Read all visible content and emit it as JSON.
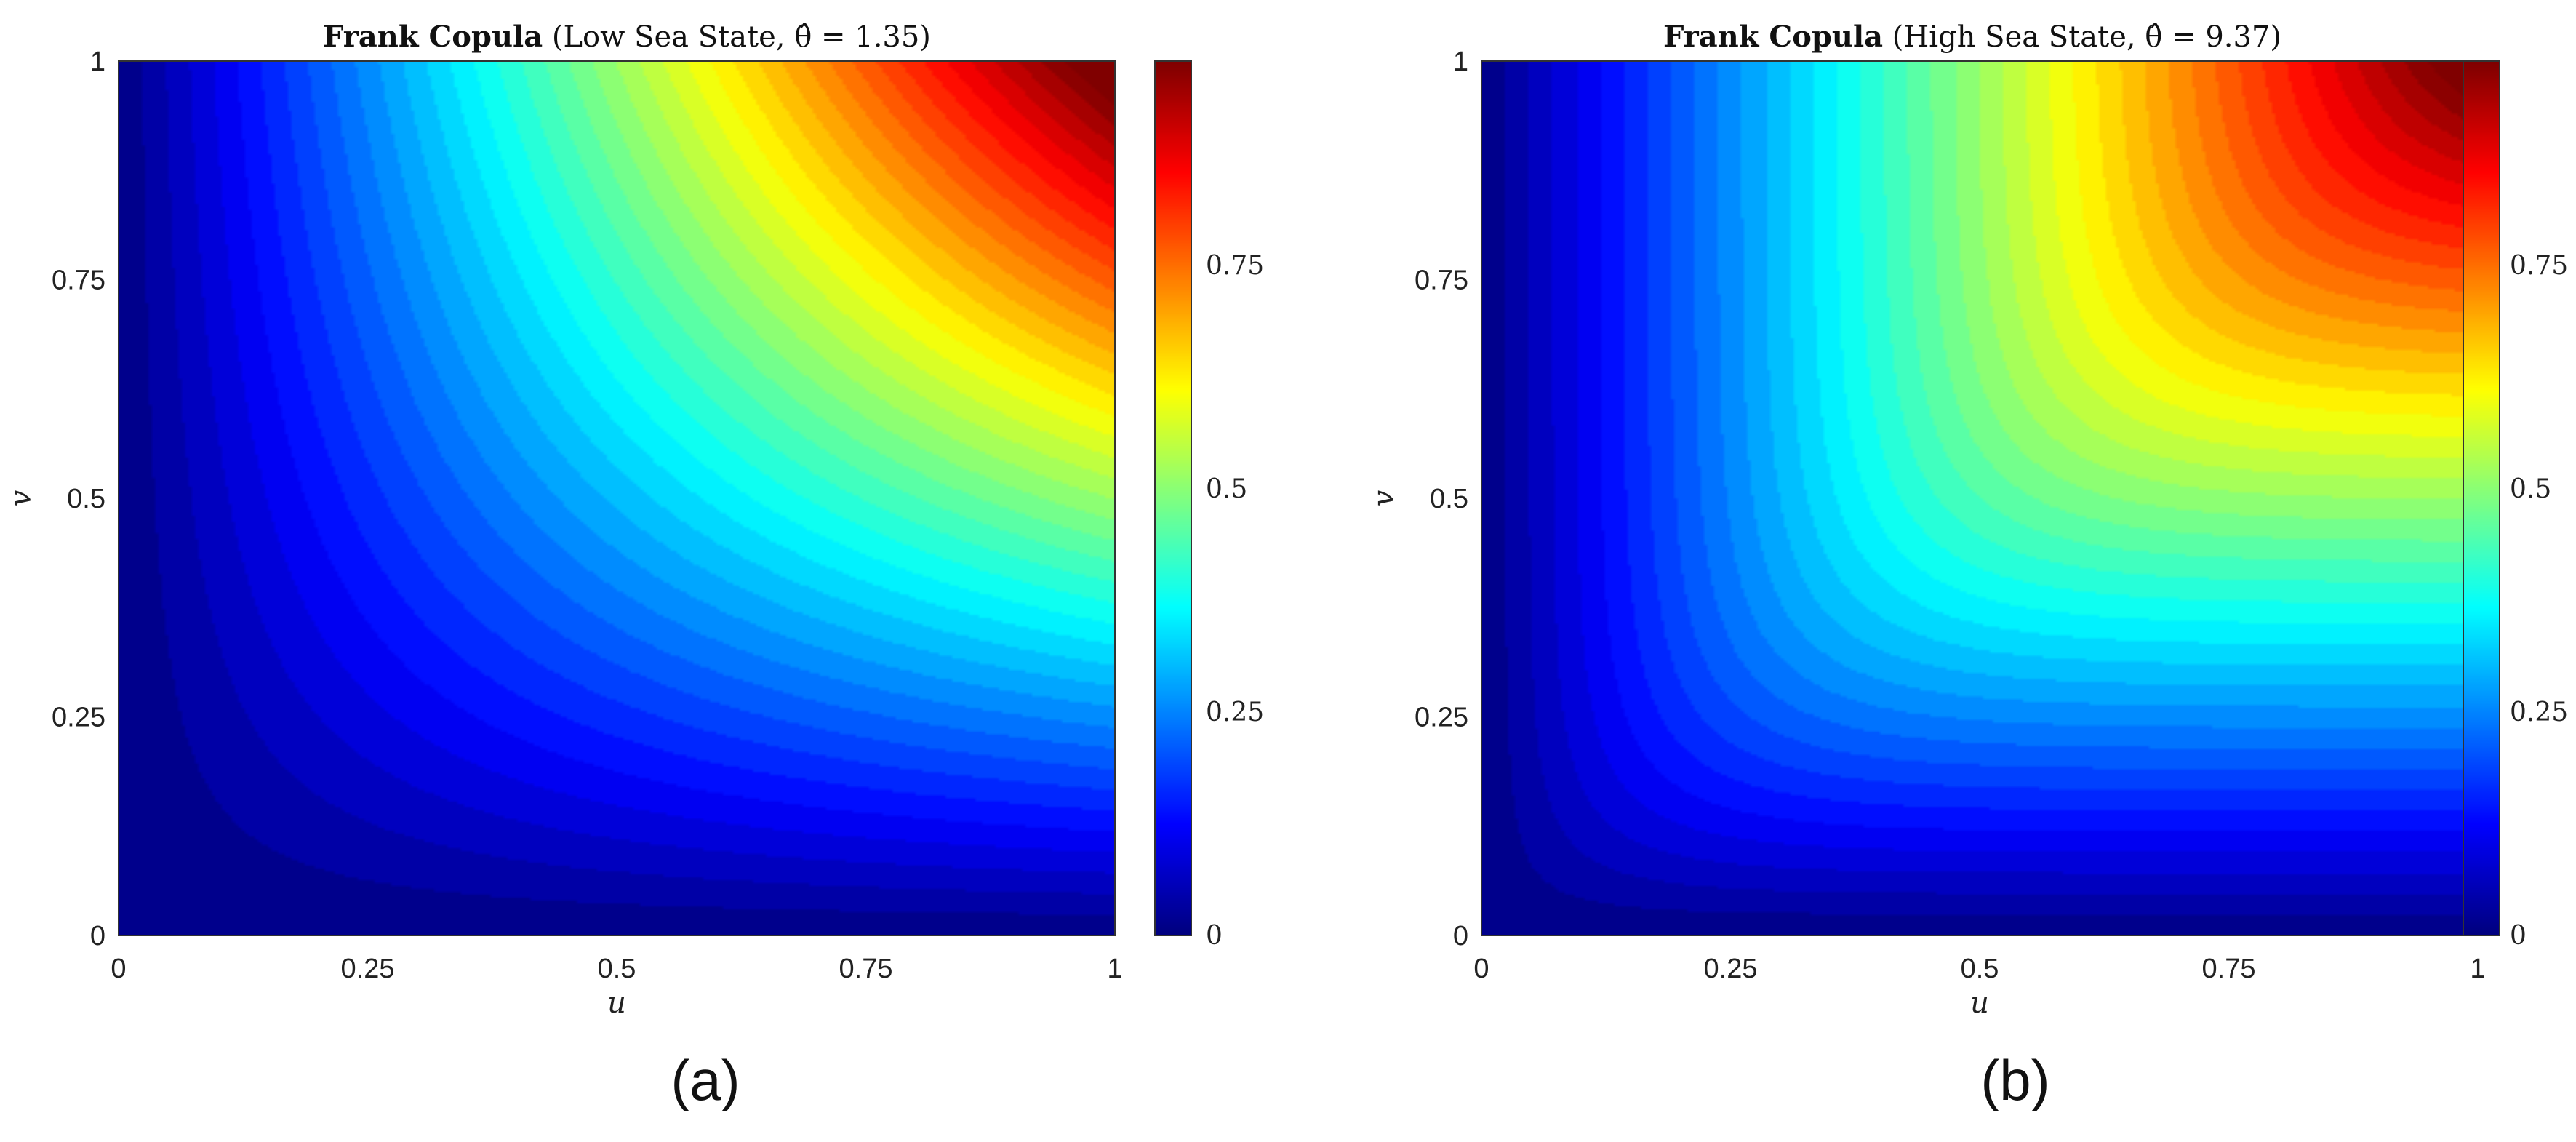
{
  "figure": {
    "panel_a_tag": "(a)",
    "panel_b_tag": "(b)"
  },
  "chart_data": [
    {
      "type": "heatmap",
      "title": "Frank Copula (Low Sea State, θ̂ = 1.35)",
      "title_bold": "Frank Copula",
      "title_rest": "(Low Sea State, θ̂ = 1.35)",
      "xlabel": "u",
      "ylabel": "v",
      "theta": 1.35,
      "function": "Frank copula C(u,v) = -1/θ · ln(1 + (e^(-θu) - 1)(e^(-θv) - 1)/(e^(-θ) - 1))",
      "xlim": [
        0,
        1
      ],
      "ylim": [
        0,
        1
      ],
      "x_ticks": [
        "0",
        "0.25",
        "0.5",
        "0.75",
        "1"
      ],
      "y_ticks": [
        "0",
        "0.25",
        "0.5",
        "0.75",
        "1"
      ],
      "colorbar": {
        "range": [
          0,
          0.95
        ],
        "ticks": [
          "0",
          "0.25",
          "0.5",
          "0.75"
        ],
        "colormap": "jet"
      },
      "levels": 40
    },
    {
      "type": "heatmap",
      "title": "Frank Copula (High Sea State, θ̂ = 9.37)",
      "title_bold": "Frank Copula",
      "title_rest": "(High Sea State, θ̂ = 9.37)",
      "xlabel": "u",
      "ylabel": "v",
      "theta": 9.37,
      "function": "Frank copula C(u,v) = -1/θ · ln(1 + (e^(-θu) - 1)(e^(-θv) - 1)/(e^(-θ) - 1))",
      "xlim": [
        0,
        1
      ],
      "ylim": [
        0,
        1
      ],
      "x_ticks": [
        "0",
        "0.25",
        "0.5",
        "0.75",
        "1"
      ],
      "y_ticks": [
        "0",
        "0.25",
        "0.5",
        "0.75",
        "1"
      ],
      "colorbar": {
        "range": [
          0,
          0.95
        ],
        "ticks": [
          "0",
          "0.25",
          "0.5",
          "0.75"
        ],
        "colormap": "jet"
      },
      "levels": 40
    }
  ]
}
